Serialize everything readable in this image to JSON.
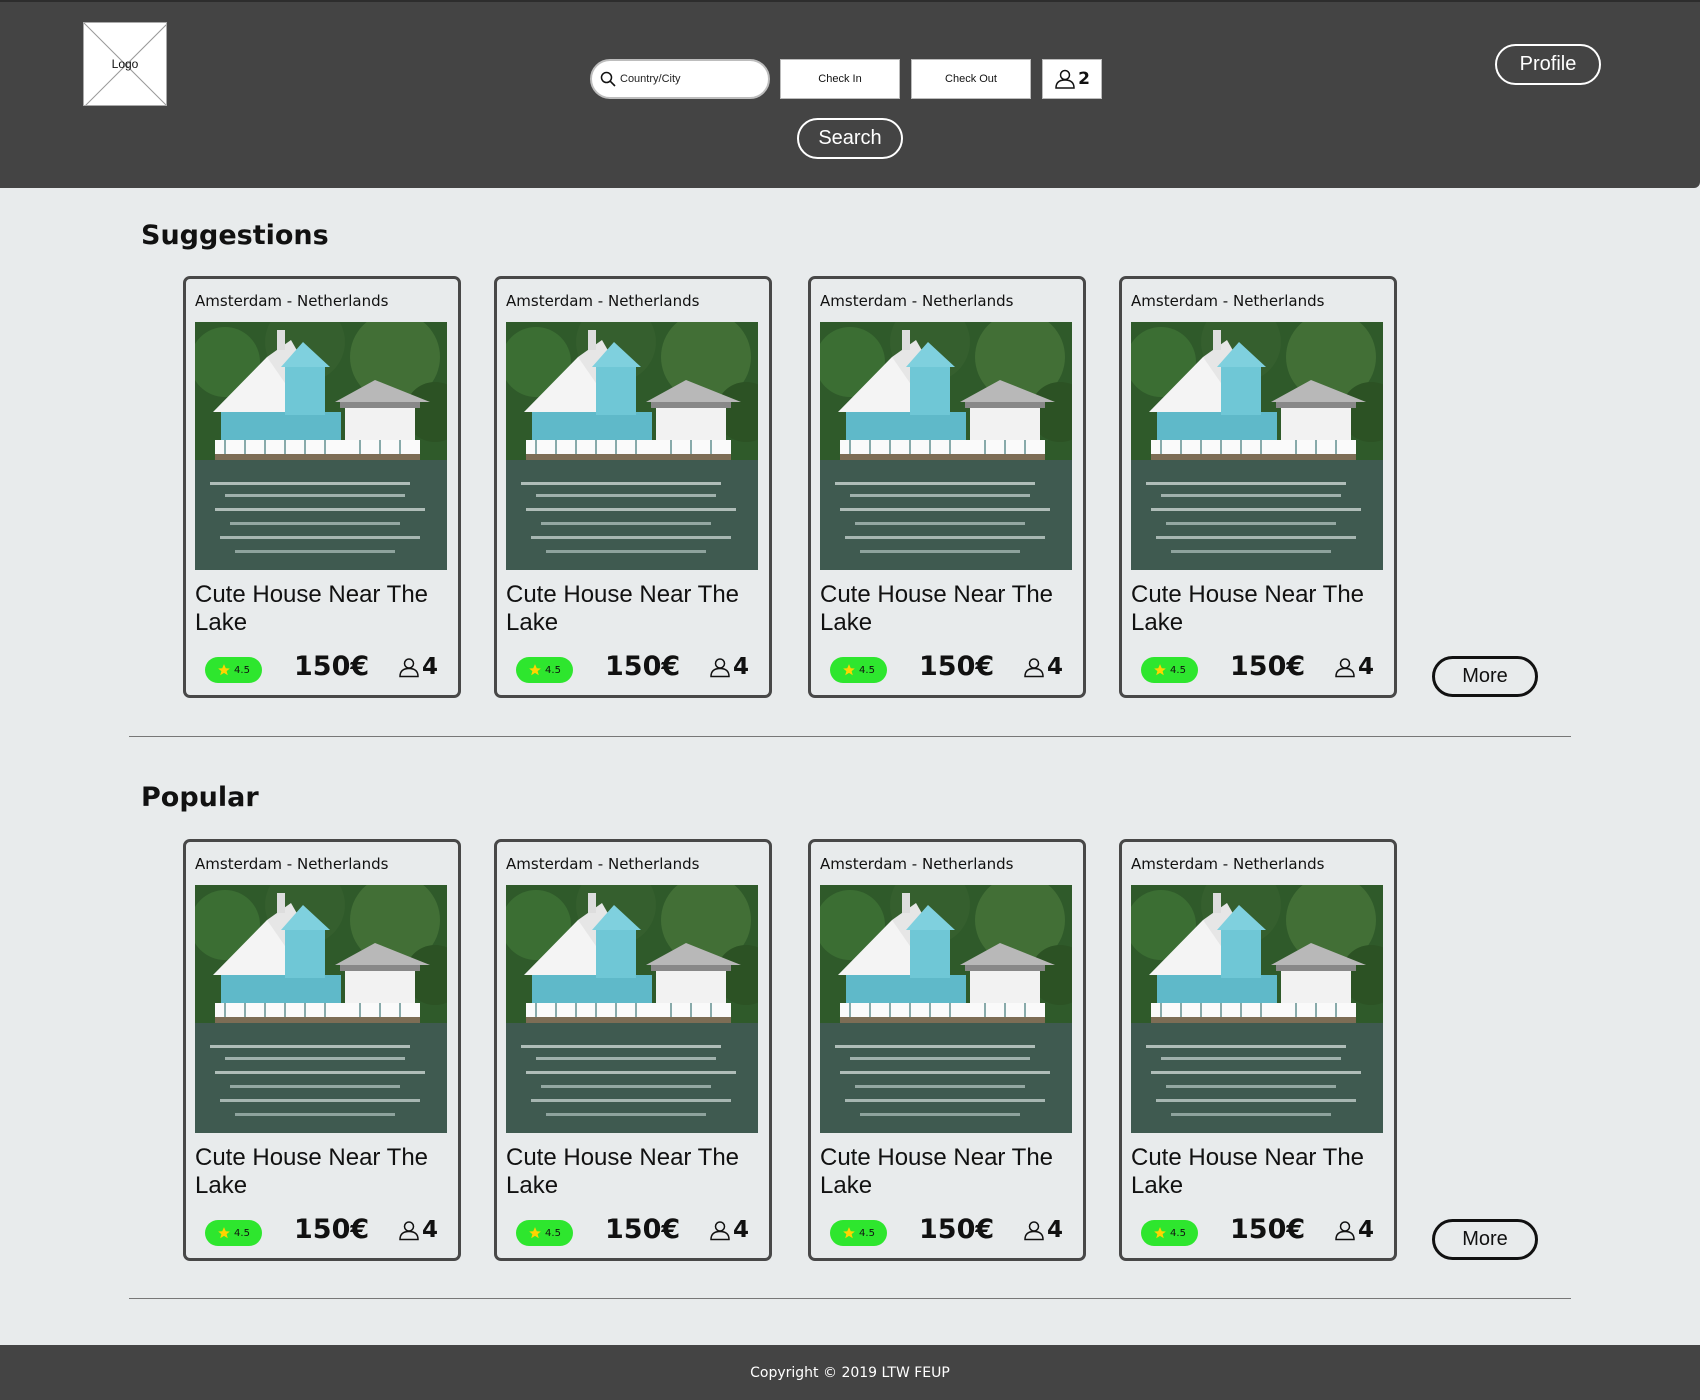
{
  "header": {
    "logo_label": "Logo",
    "search_placeholder": "Country/City",
    "check_in_label": "Check In",
    "check_out_label": "Check Out",
    "guests_count": "2",
    "search_button": "Search",
    "profile_button": "Profile"
  },
  "sections": [
    {
      "title": "Suggestions",
      "more_label": "More",
      "cards": [
        {
          "location": "Amsterdam - Netherlands",
          "title": "Cute House Near The Lake",
          "rating": "4.5",
          "price": "150€",
          "capacity": "4"
        },
        {
          "location": "Amsterdam - Netherlands",
          "title": "Cute House Near The Lake",
          "rating": "4.5",
          "price": "150€",
          "capacity": "4"
        },
        {
          "location": "Amsterdam - Netherlands",
          "title": "Cute House Near The Lake",
          "rating": "4.5",
          "price": "150€",
          "capacity": "4"
        },
        {
          "location": "Amsterdam - Netherlands",
          "title": "Cute House Near The Lake",
          "rating": "4.5",
          "price": "150€",
          "capacity": "4"
        }
      ]
    },
    {
      "title": "Popular",
      "more_label": "More",
      "cards": [
        {
          "location": "Amsterdam - Netherlands",
          "title": "Cute House Near The Lake",
          "rating": "4.5",
          "price": "150€",
          "capacity": "4"
        },
        {
          "location": "Amsterdam - Netherlands",
          "title": "Cute House Near The Lake",
          "rating": "4.5",
          "price": "150€",
          "capacity": "4"
        },
        {
          "location": "Amsterdam - Netherlands",
          "title": "Cute House Near The Lake",
          "rating": "4.5",
          "price": "150€",
          "capacity": "4"
        },
        {
          "location": "Amsterdam - Netherlands",
          "title": "Cute House Near The Lake",
          "rating": "4.5",
          "price": "150€",
          "capacity": "4"
        }
      ]
    }
  ],
  "footer": {
    "copyright": "Copyright © 2019 LTW FEUP"
  },
  "colors": {
    "header_bg": "#444444",
    "page_bg": "#e8ebec",
    "rating_badge": "#2ee62e"
  }
}
